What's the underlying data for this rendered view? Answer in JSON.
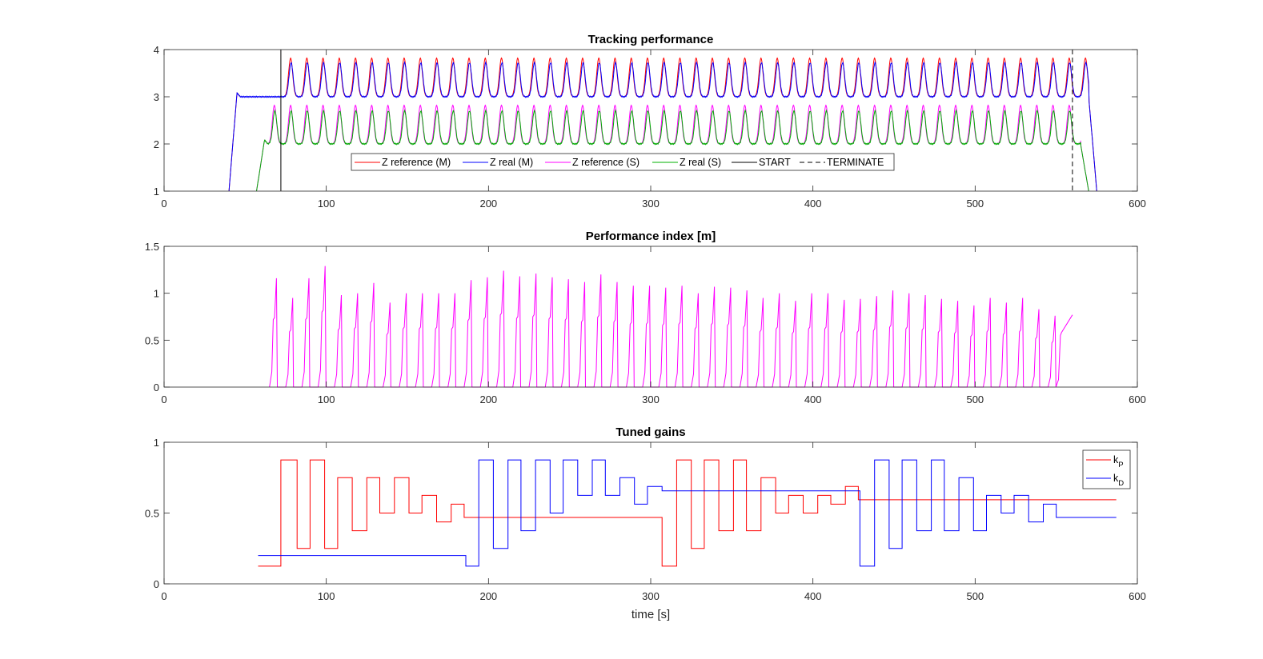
{
  "chart_data": [
    {
      "type": "line",
      "title": "Tracking performance",
      "xlabel": "",
      "ylabel": "",
      "xlim": [
        0,
        600
      ],
      "ylim": [
        1,
        4
      ],
      "xticks": [
        0,
        100,
        200,
        300,
        400,
        500,
        600
      ],
      "yticks": [
        1,
        2,
        3,
        4
      ],
      "grid": false,
      "legend_position": "bottom-center, horizontal",
      "oscillation_period": 10,
      "series": [
        {
          "name": "Z reference (M)",
          "color": "#ff0000",
          "start": 40,
          "end": 575,
          "baseline": 3.0,
          "peak": 3.82,
          "first_peak": 78
        },
        {
          "name": "Z real (M)",
          "color": "#0000ff",
          "start": 40,
          "end": 575,
          "baseline": 3.0,
          "peak": 3.72,
          "first_peak": 78
        },
        {
          "name": "Z reference (S)",
          "color": "#ff00ff",
          "start": 57,
          "end": 570,
          "baseline": 2.0,
          "peak": 2.82,
          "first_peak": 68
        },
        {
          "name": "Z real (S)",
          "color": "#00b000",
          "start": 57,
          "end": 570,
          "baseline": 2.0,
          "peak": 2.7,
          "first_peak": 68
        }
      ],
      "markers": [
        {
          "name": "START",
          "x": 72,
          "style": "solid",
          "color": "#000000"
        },
        {
          "name": "TERMINATE",
          "x": 560,
          "style": "dashed",
          "color": "#000000"
        }
      ]
    },
    {
      "type": "line",
      "title": "Performance index [m]",
      "xlabel": "",
      "ylabel": "",
      "xlim": [
        0,
        600
      ],
      "ylim": [
        0,
        1.5
      ],
      "xticks": [
        0,
        100,
        200,
        300,
        400,
        500,
        600
      ],
      "yticks": [
        0,
        0.5,
        1,
        1.5
      ],
      "grid": false,
      "series": [
        {
          "name": "Performance index",
          "color": "#ff00ff",
          "cycle_starts": [
            65,
            75,
            85,
            95,
            105,
            115,
            125,
            135,
            145,
            155,
            165,
            175,
            185,
            195,
            205,
            215,
            225,
            235,
            245,
            255,
            265,
            275,
            285,
            295,
            305,
            315,
            325,
            335,
            345,
            355,
            365,
            375,
            385,
            395,
            405,
            415,
            425,
            435,
            445,
            455,
            465,
            475,
            485,
            495,
            505,
            515,
            525,
            535,
            545
          ],
          "cycle_peaks": [
            1.16,
            0.95,
            1.16,
            1.29,
            0.98,
            1.0,
            1.11,
            0.9,
            1.0,
            1.0,
            1.0,
            1.0,
            1.14,
            1.17,
            1.24,
            1.18,
            1.21,
            1.17,
            1.15,
            1.12,
            1.2,
            1.12,
            1.08,
            1.08,
            1.06,
            1.08,
            1.0,
            1.07,
            1.06,
            1.03,
            0.95,
            1.0,
            0.92,
            1.0,
            1.0,
            0.93,
            0.94,
            0.97,
            1.03,
            1.0,
            0.98,
            0.94,
            0.92,
            0.87,
            0.95,
            0.9,
            0.95,
            0.83,
            0.76
          ],
          "end": 560,
          "end_value": 0.77
        }
      ]
    },
    {
      "type": "line",
      "title": "Tuned gains",
      "xlabel": "time [s]",
      "ylabel": "",
      "xlim": [
        0,
        600
      ],
      "ylim": [
        0,
        1
      ],
      "xticks": [
        0,
        100,
        200,
        300,
        400,
        500,
        600
      ],
      "yticks": [
        0,
        0.5,
        1
      ],
      "grid": false,
      "legend_position": "top-right",
      "series": [
        {
          "name": "k_P",
          "legend_main": "k",
          "legend_sub": "P",
          "color": "#ff0000",
          "steps": [
            [
              58,
              0.125
            ],
            [
              72,
              0.875
            ],
            [
              82,
              0.25
            ],
            [
              90,
              0.875
            ],
            [
              99,
              0.25
            ],
            [
              107,
              0.75
            ],
            [
              116,
              0.375
            ],
            [
              125,
              0.75
            ],
            [
              133,
              0.5
            ],
            [
              142,
              0.75
            ],
            [
              151,
              0.5
            ],
            [
              159,
              0.625
            ],
            [
              168,
              0.4375
            ],
            [
              177,
              0.5625
            ],
            [
              185,
              0.46875
            ],
            [
              307,
              0.125
            ],
            [
              316,
              0.875
            ],
            [
              325,
              0.25
            ],
            [
              333,
              0.875
            ],
            [
              342,
              0.375
            ],
            [
              351,
              0.875
            ],
            [
              359,
              0.375
            ],
            [
              368,
              0.75
            ],
            [
              377,
              0.5
            ],
            [
              385,
              0.625
            ],
            [
              394,
              0.5
            ],
            [
              403,
              0.625
            ],
            [
              411,
              0.5625
            ],
            [
              420,
              0.6875
            ],
            [
              428,
              0.59375
            ],
            [
              587,
              0.59375
            ]
          ]
        },
        {
          "name": "k_D",
          "legend_main": "k",
          "legend_sub": "D",
          "color": "#0000ff",
          "steps": [
            [
              58,
              0.2
            ],
            [
              186,
              0.125
            ],
            [
              194,
              0.875
            ],
            [
              203,
              0.25
            ],
            [
              212,
              0.875
            ],
            [
              220,
              0.375
            ],
            [
              229,
              0.875
            ],
            [
              238,
              0.5
            ],
            [
              246,
              0.875
            ],
            [
              255,
              0.625
            ],
            [
              264,
              0.875
            ],
            [
              272,
              0.625
            ],
            [
              281,
              0.75
            ],
            [
              290,
              0.5625
            ],
            [
              298,
              0.6875
            ],
            [
              307,
              0.65625
            ],
            [
              429,
              0.125
            ],
            [
              438,
              0.875
            ],
            [
              447,
              0.25
            ],
            [
              455,
              0.875
            ],
            [
              464,
              0.375
            ],
            [
              473,
              0.875
            ],
            [
              481,
              0.375
            ],
            [
              490,
              0.75
            ],
            [
              499,
              0.375
            ],
            [
              507,
              0.625
            ],
            [
              516,
              0.5
            ],
            [
              524,
              0.625
            ],
            [
              533,
              0.4375
            ],
            [
              542,
              0.5625
            ],
            [
              550,
              0.46875
            ],
            [
              587,
              0.46875
            ]
          ]
        }
      ]
    }
  ]
}
